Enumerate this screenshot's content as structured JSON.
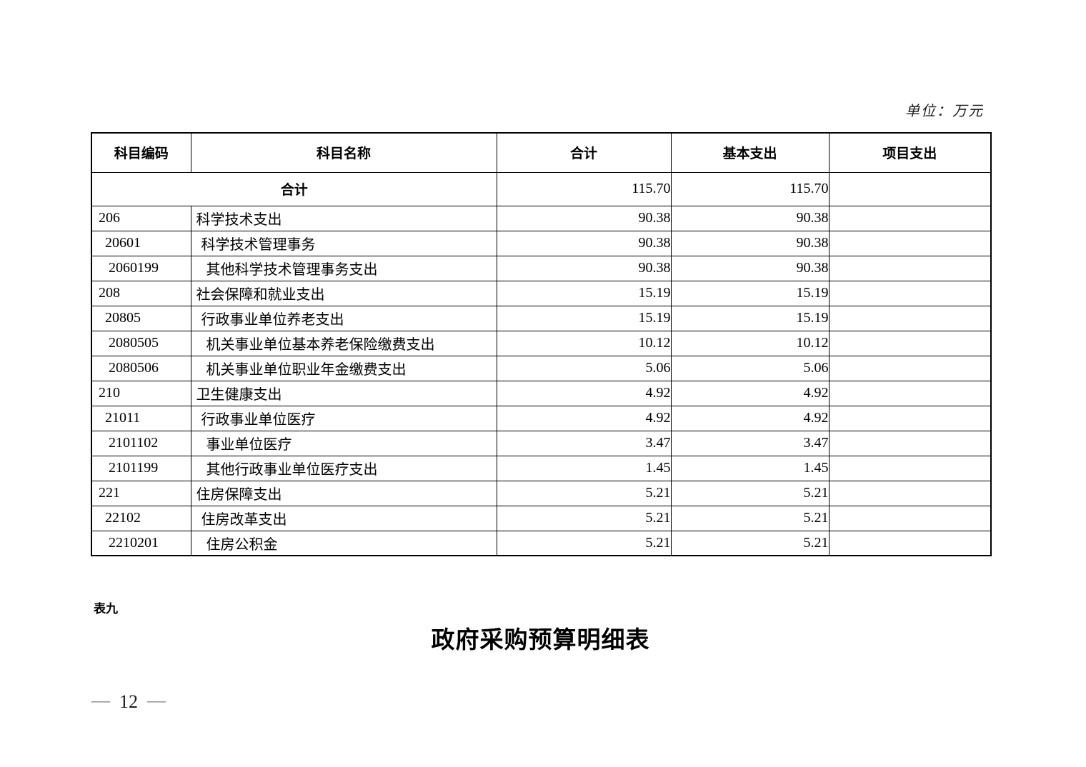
{
  "meta": {
    "unit_label": "单位：万元"
  },
  "table": {
    "headers": [
      "科目编码",
      "科目名称",
      "合计",
      "基本支出",
      "项目支出"
    ],
    "total_row": {
      "label": "合计",
      "total": "115.70",
      "basic": "115.70",
      "project": ""
    },
    "rows": [
      {
        "code": "206",
        "name": "科学技术支出",
        "total": "90.38",
        "basic": "90.38",
        "project": "",
        "level": 1
      },
      {
        "code": "20601",
        "name": "科学技术管理事务",
        "total": "90.38",
        "basic": "90.38",
        "project": "",
        "level": 2
      },
      {
        "code": "2060199",
        "name": "其他科学技术管理事务支出",
        "total": "90.38",
        "basic": "90.38",
        "project": "",
        "level": 3
      },
      {
        "code": "208",
        "name": "社会保障和就业支出",
        "total": "15.19",
        "basic": "15.19",
        "project": "",
        "level": 1
      },
      {
        "code": "20805",
        "name": "行政事业单位养老支出",
        "total": "15.19",
        "basic": "15.19",
        "project": "",
        "level": 2
      },
      {
        "code": "2080505",
        "name": "机关事业单位基本养老保险缴费支出",
        "total": "10.12",
        "basic": "10.12",
        "project": "",
        "level": 3
      },
      {
        "code": "2080506",
        "name": "机关事业单位职业年金缴费支出",
        "total": "5.06",
        "basic": "5.06",
        "project": "",
        "level": 3
      },
      {
        "code": "210",
        "name": "卫生健康支出",
        "total": "4.92",
        "basic": "4.92",
        "project": "",
        "level": 1
      },
      {
        "code": "21011",
        "name": "行政事业单位医疗",
        "total": "4.92",
        "basic": "4.92",
        "project": "",
        "level": 2
      },
      {
        "code": "2101102",
        "name": "事业单位医疗",
        "total": "3.47",
        "basic": "3.47",
        "project": "",
        "level": 3
      },
      {
        "code": "2101199",
        "name": "其他行政事业单位医疗支出",
        "total": "1.45",
        "basic": "1.45",
        "project": "",
        "level": 3
      },
      {
        "code": "221",
        "name": "住房保障支出",
        "total": "5.21",
        "basic": "5.21",
        "project": "",
        "level": 1
      },
      {
        "code": "22102",
        "name": "住房改革支出",
        "total": "5.21",
        "basic": "5.21",
        "project": "",
        "level": 2
      },
      {
        "code": "2210201",
        "name": "住房公积金",
        "total": "5.21",
        "basic": "5.21",
        "project": "",
        "level": 3
      }
    ]
  },
  "footer": {
    "table_tag": "表九",
    "next_table_title": "政府采购预算明细表",
    "dash": "—",
    "page_number": "12"
  }
}
